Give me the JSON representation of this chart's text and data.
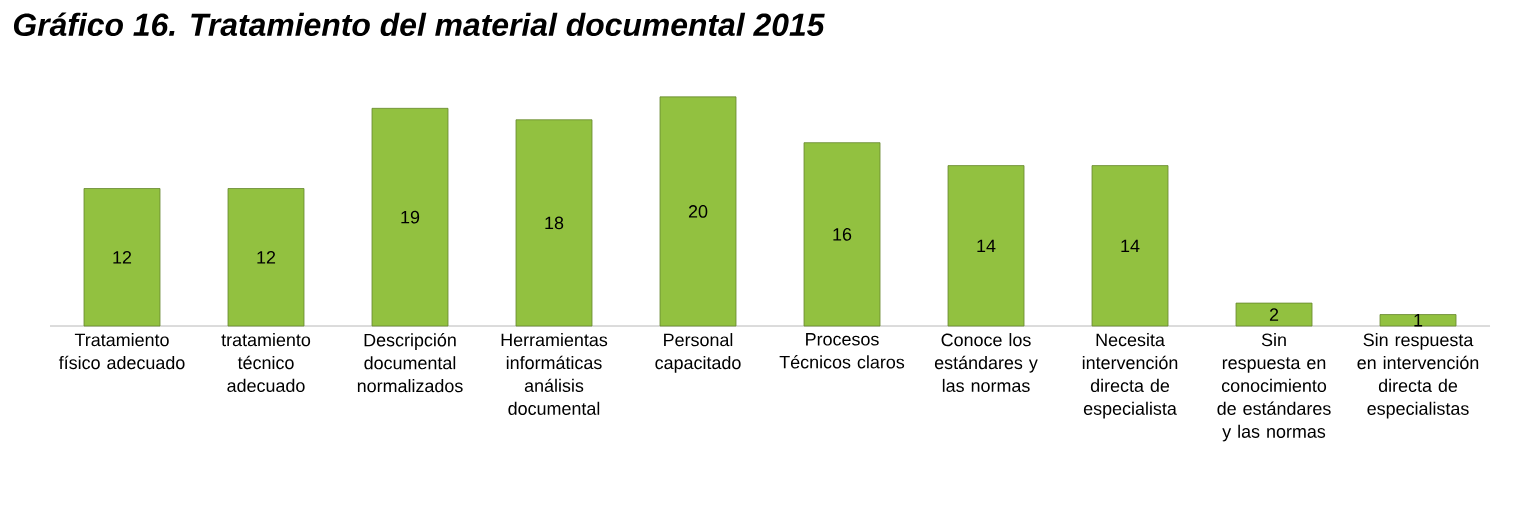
{
  "chart_data": {
    "type": "bar",
    "title": "Gráfico 16. Tratamiento del material documental  2015",
    "categories": [
      "Tratamiento físico adecuado",
      "tratamiento técnico adecuado",
      "Descripción documental normalizados",
      "Herramientas informáticas análisis documental",
      "Personal capacitado",
      "Procesos Técnicos claros",
      "Conoce los estándares y las normas",
      "Necesita intervención directa de especialista",
      "Sin respuesta en conocimiento de estándares y las normas",
      "Sin respuesta en intervención directa de especialistas"
    ],
    "values": [
      12,
      12,
      19,
      18,
      20,
      16,
      14,
      14,
      2,
      1
    ],
    "color": "#92c140",
    "data_labels": true
  }
}
